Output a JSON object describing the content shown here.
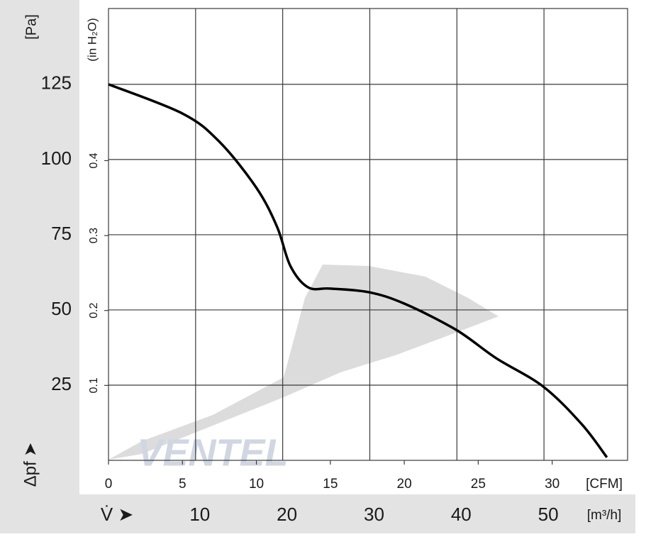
{
  "chart_data": {
    "type": "line",
    "x": [
      0,
      5,
      7.5,
      10,
      11.4,
      12.3,
      13.5,
      15,
      17.6,
      20,
      23.5,
      26.2,
      29.4,
      32,
      33.7
    ],
    "values": [
      125,
      115.3,
      105.9,
      90.6,
      77.6,
      64.6,
      57.5,
      57.1,
      55.9,
      52.1,
      43.4,
      34,
      24.5,
      12,
      1
    ],
    "color": "#000000",
    "xlim": [
      0,
      35.1
    ],
    "xticks": [
      0,
      5,
      10,
      15,
      20,
      25,
      30
    ],
    "x_label": "[CFM]",
    "x2lim": [
      0,
      59.6
    ],
    "x2ticks": [
      10,
      20,
      30,
      40,
      50
    ],
    "x2_label": "[m³/h]",
    "x2_symbol": "V̇ ➤",
    "ylim": [
      0,
      150.2
    ],
    "yticks": [
      25,
      50,
      75,
      100,
      125
    ],
    "y_label": "[Pa]",
    "y_symbol": "Δpf ➤",
    "y2lim": [
      0,
      0.603
    ],
    "y2ticks": [
      0.1,
      0.2,
      0.3,
      0.4
    ],
    "y2_label": "(in H₂O)",
    "watermark": "VENTEL",
    "grid": true
  }
}
